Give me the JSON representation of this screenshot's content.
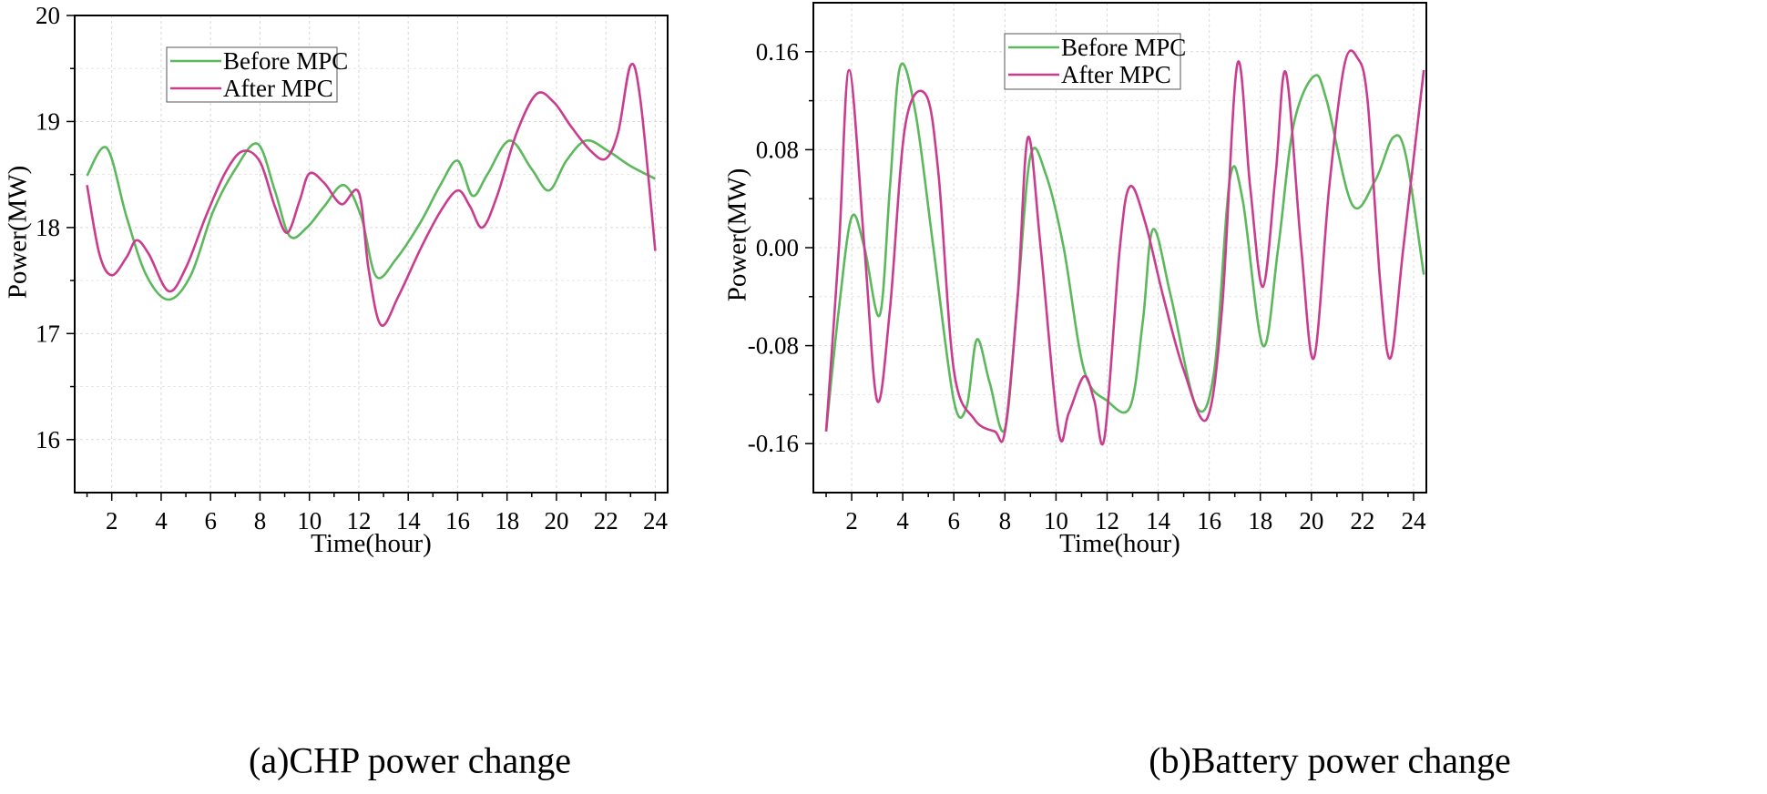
{
  "chart_data": [
    {
      "type": "line",
      "title": "",
      "caption": "(a)CHP power change",
      "xlabel": "Time(hour)",
      "ylabel": "Power(MW)",
      "xlim": [
        0.5,
        24.5
      ],
      "ylim": [
        15.5,
        20
      ],
      "xticks": [
        2,
        4,
        6,
        8,
        10,
        12,
        14,
        16,
        18,
        20,
        22,
        24
      ],
      "yticks": [
        16,
        17,
        18,
        19,
        20
      ],
      "ytick_labels": [
        "16",
        "17",
        "18",
        "19",
        "20"
      ],
      "grid": true,
      "legend_position": "top-left",
      "series": [
        {
          "name": "Before MPC",
          "color": "#5cb85c",
          "x": [
            1,
            1.8,
            2.6,
            3.4,
            4.3,
            5.2,
            6.1,
            7.0,
            7.9,
            8.6,
            9.2,
            9.9,
            10.6,
            11.4,
            12.1,
            12.7,
            13.5,
            14.5,
            15.3,
            16.0,
            16.6,
            17.2,
            18.1,
            19.0,
            19.7,
            20.4,
            21.2,
            22.1,
            23.0,
            24.0
          ],
          "values": [
            18.49,
            18.75,
            18.1,
            17.55,
            17.32,
            17.55,
            18.15,
            18.55,
            18.79,
            18.35,
            17.92,
            18.0,
            18.2,
            18.4,
            18.1,
            17.54,
            17.7,
            18.05,
            18.4,
            18.63,
            18.3,
            18.5,
            18.82,
            18.55,
            18.35,
            18.63,
            18.82,
            18.72,
            18.58,
            18.46
          ]
        },
        {
          "name": "After MPC",
          "color": "#c93c8e",
          "x": [
            1,
            1.5,
            2.0,
            2.6,
            3.0,
            3.5,
            4.3,
            5.0,
            5.8,
            6.6,
            7.3,
            8.0,
            8.6,
            9.1,
            9.6,
            10.0,
            10.6,
            11.3,
            12.0,
            12.4,
            12.9,
            13.6,
            14.5,
            15.3,
            16.0,
            16.5,
            17.0,
            17.6,
            18.4,
            19.2,
            19.9,
            20.6,
            21.4,
            22.0,
            22.5,
            23.0,
            23.4,
            24.0
          ],
          "values": [
            18.4,
            17.75,
            17.55,
            17.72,
            17.88,
            17.75,
            17.4,
            17.62,
            18.1,
            18.52,
            18.72,
            18.62,
            18.2,
            17.95,
            18.25,
            18.51,
            18.42,
            18.22,
            18.33,
            17.6,
            17.08,
            17.35,
            17.8,
            18.15,
            18.35,
            18.2,
            18.0,
            18.3,
            18.9,
            19.26,
            19.18,
            18.95,
            18.72,
            18.65,
            18.9,
            19.53,
            19.2,
            17.78
          ]
        }
      ]
    },
    {
      "type": "line",
      "title": "",
      "caption": "(b)Battery power change",
      "xlabel": "Time(hour)",
      "ylabel": "Power(MW)",
      "xlim": [
        0.5,
        24.5
      ],
      "ylim": [
        -0.2,
        0.2
      ],
      "xticks": [
        2,
        4,
        6,
        8,
        10,
        12,
        14,
        16,
        18,
        20,
        22,
        24
      ],
      "yticks": [
        -0.16,
        -0.08,
        0.0,
        0.08,
        0.16
      ],
      "ytick_labels": [
        "-0.16",
        "-0.08",
        "0.00",
        "0.08",
        "0.16"
      ],
      "grid": true,
      "legend_position": "top-left",
      "series": [
        {
          "name": "Before MPC",
          "color": "#5cb85c",
          "x": [
            1,
            1.5,
            2.0,
            2.5,
            3.1,
            3.5,
            3.9,
            4.5,
            5.2,
            6.0,
            6.5,
            6.9,
            7.4,
            8.0,
            8.5,
            9.0,
            9.6,
            10.3,
            11.1,
            12.0,
            12.9,
            13.4,
            13.8,
            14.5,
            15.5,
            16.2,
            16.8,
            17.3,
            18.1,
            18.7,
            19.3,
            20.1,
            20.6,
            21.6,
            22.5,
            23.2,
            23.7,
            24.4
          ],
          "values": [
            -0.15,
            -0.05,
            0.025,
            0.0,
            -0.055,
            0.05,
            0.148,
            0.11,
            0.0,
            -0.125,
            -0.13,
            -0.075,
            -0.11,
            -0.148,
            -0.04,
            0.075,
            0.06,
            0.0,
            -0.1,
            -0.125,
            -0.13,
            -0.06,
            0.015,
            -0.04,
            -0.13,
            -0.1,
            0.055,
            0.04,
            -0.08,
            0.0,
            0.1,
            0.14,
            0.12,
            0.035,
            0.055,
            0.09,
            0.075,
            -0.022
          ]
        },
        {
          "name": "After MPC",
          "color": "#c93c8e",
          "x": [
            1,
            1.5,
            1.9,
            2.5,
            3.0,
            3.5,
            4.1,
            4.9,
            5.4,
            6.0,
            6.8,
            7.6,
            8.0,
            8.5,
            8.9,
            9.4,
            10.1,
            10.5,
            11.1,
            11.5,
            11.9,
            12.5,
            12.9,
            13.5,
            14.2,
            15.0,
            15.9,
            16.5,
            17.1,
            17.6,
            18.1,
            18.6,
            19.0,
            19.6,
            20.1,
            20.7,
            21.3,
            21.8,
            22.2,
            22.7,
            23.1,
            23.6,
            24.4
          ],
          "values": [
            -0.15,
            0.0,
            0.145,
            0.0,
            -0.125,
            -0.05,
            0.1,
            0.125,
            0.06,
            -0.1,
            -0.14,
            -0.15,
            -0.15,
            -0.04,
            0.09,
            0.0,
            -0.15,
            -0.135,
            -0.105,
            -0.125,
            -0.155,
            0.0,
            0.05,
            0.02,
            -0.04,
            -0.1,
            -0.14,
            -0.05,
            0.15,
            0.05,
            -0.032,
            0.06,
            0.143,
            0.0,
            -0.09,
            0.05,
            0.15,
            0.155,
            0.12,
            -0.03,
            -0.09,
            0.0,
            0.145
          ]
        }
      ]
    }
  ]
}
